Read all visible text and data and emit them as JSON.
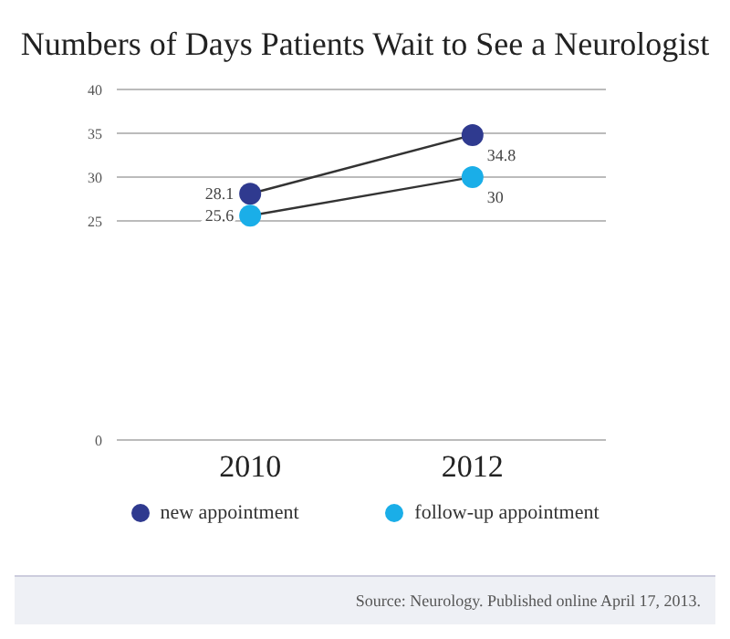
{
  "chart_data": {
    "type": "line",
    "title": "Numbers of Days Patients Wait to See a Neurologist",
    "categories": [
      "2010",
      "2012"
    ],
    "series": [
      {
        "name": "new appointment",
        "color": "#2f3a8f",
        "values": [
          28.1,
          34.8
        ]
      },
      {
        "name": "follow-up appointment",
        "color": "#1aaee8",
        "values": [
          25.6,
          30
        ]
      }
    ],
    "ylim": [
      0,
      40
    ],
    "yticks": [
      0,
      25,
      30,
      35,
      40
    ],
    "grid": "y",
    "legend": "bottom",
    "marker": "circle",
    "line_style": "solid",
    "data_labels": true,
    "annotations": [
      "Source: Neurology. Published online April 17, 2013."
    ]
  }
}
